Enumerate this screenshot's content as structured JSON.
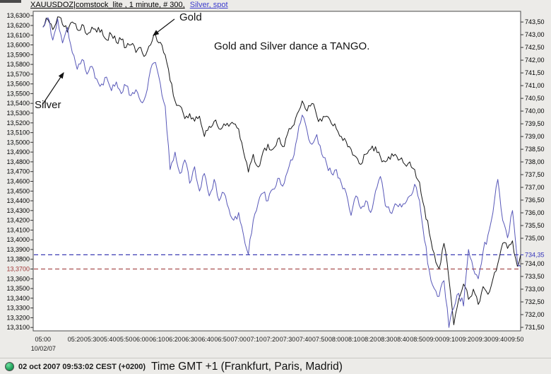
{
  "window": {
    "title_instrument": "XAUUSDOZ|comstock_lite , 1 minute, # 300,",
    "title_overlay": "Silver, spot",
    "overlay_color": "#3b3bcc"
  },
  "annotations": {
    "gold_label": "Gold",
    "silver_label": "Silver",
    "tango_text": "Gold and Silver dance a TANGO."
  },
  "status_bar": {
    "status_icon": "green-circle",
    "timestamp": "02 oct 2007 09:53:02 CEST (+0200)",
    "timezone_label": "Time GMT +1 (Frankfurt, Paris, Madrid)"
  },
  "chart_data": {
    "type": "line",
    "title": "XAUUSDOZ 1 minute — Gold and Silver, spot",
    "grid": false,
    "legend": "none",
    "x_axis": {
      "tick_labels": [
        "05:00",
        "05:20",
        "05:30",
        "05:40",
        "05:50",
        "06:00",
        "06:10",
        "06:20",
        "06:30",
        "06:40",
        "06:50",
        "07:00",
        "07:10",
        "07:20",
        "07:30",
        "07:40",
        "07:50",
        "08:00",
        "08:10",
        "08:20",
        "08:30",
        "08:40",
        "08:50",
        "09:00",
        "09:10",
        "09:20",
        "09:30",
        "09:40",
        "09:50"
      ],
      "date_label": "10/02/07",
      "window_start_min": -6,
      "window_end_min": 293
    },
    "left_axis": {
      "series": "Silver (USD/oz)",
      "tick_start": 13.31,
      "tick_end": 13.63,
      "tick_step": 0.01,
      "decimals": 4,
      "scale_min": 13.3065,
      "scale_max": 13.6345,
      "highlight_value": 13.37,
      "highlight_label": "13,3700",
      "highlight_color": "#a03838"
    },
    "right_axis": {
      "series": "Gold (USD/oz)",
      "tick_start": 731.5,
      "tick_end": 743.5,
      "tick_step": 0.5,
      "decimals": 2,
      "scale_min": 731.36,
      "scale_max": 743.92,
      "skip_value": 734.5,
      "current_value": 734.35,
      "current_label": "734,35",
      "current_color": "#3434bb"
    },
    "hlines": [
      {
        "axis": "right",
        "value": 734.35,
        "color": "#3c3cb4",
        "style": "dashed"
      },
      {
        "axis": "left",
        "value": 13.37,
        "color": "#a85050",
        "style": "dashed"
      }
    ],
    "series": [
      {
        "name": "Gold",
        "axis": "right",
        "color": "#141414",
        "noise_amp": 0.16,
        "x_start_min": 0,
        "x_step_min": 3,
        "x_end_min": 293,
        "values": [
          743.3,
          743.6,
          743.2,
          743.7,
          743.4,
          743.1,
          743.5,
          743.2,
          743.4,
          743.0,
          743.3,
          743.1,
          743.2,
          742.8,
          743.0,
          742.7,
          742.8,
          742.5,
          742.6,
          742.3,
          742.5,
          742.2,
          742.6,
          743.0,
          742.7,
          742.2,
          741.2,
          740.4,
          740.2,
          739.7,
          739.9,
          739.6,
          739.8,
          739.0,
          739.4,
          739.6,
          739.3,
          739.5,
          739.4,
          739.5,
          739.3,
          738.4,
          737.6,
          738.3,
          737.8,
          738.4,
          738.7,
          738.5,
          738.9,
          738.6,
          739.1,
          739.4,
          739.9,
          740.4,
          740.0,
          740.3,
          739.8,
          739.6,
          739.8,
          739.5,
          739.3,
          739.0,
          738.8,
          738.5,
          738.2,
          737.9,
          738.3,
          738.5,
          738.6,
          738.2,
          738.0,
          738.1,
          738.3,
          738.1,
          737.9,
          738.0,
          737.7,
          737.2,
          736.2,
          735.2,
          734.4,
          733.8,
          734.8,
          733.4,
          731.6,
          732.6,
          733.2,
          732.6,
          733.0,
          732.4,
          733.1,
          732.8,
          733.4,
          734.0,
          734.8,
          734.6,
          734.9,
          733.9,
          734.35
        ]
      },
      {
        "name": "Silver",
        "axis": "left",
        "color": "#5757b8",
        "noise_amp": 0.0042,
        "x_start_min": 0,
        "x_step_min": 3,
        "x_end_min": 293,
        "values": [
          13.618,
          13.628,
          13.605,
          13.627,
          13.602,
          13.618,
          13.592,
          13.575,
          13.585,
          13.57,
          13.578,
          13.565,
          13.56,
          13.567,
          13.553,
          13.562,
          13.55,
          13.558,
          13.548,
          13.554,
          13.542,
          13.548,
          13.575,
          13.582,
          13.56,
          13.537,
          13.472,
          13.49,
          13.468,
          13.482,
          13.458,
          13.475,
          13.45,
          13.468,
          13.445,
          13.462,
          13.44,
          13.448,
          13.432,
          13.42,
          13.428,
          13.405,
          13.385,
          13.42,
          13.438,
          13.448,
          13.44,
          13.452,
          13.463,
          13.455,
          13.47,
          13.482,
          13.505,
          13.528,
          13.512,
          13.498,
          13.508,
          13.488,
          13.478,
          13.468,
          13.472,
          13.458,
          13.448,
          13.425,
          13.445,
          13.432,
          13.44,
          13.428,
          13.45,
          13.465,
          13.435,
          13.428,
          13.437,
          13.437,
          13.437,
          13.445,
          13.457,
          13.44,
          13.4,
          13.368,
          13.35,
          13.342,
          13.358,
          13.31,
          13.33,
          13.345,
          13.332,
          13.39,
          13.37,
          13.36,
          13.388,
          13.405,
          13.428,
          13.462,
          13.42,
          13.402,
          13.43,
          13.378,
          13.372
        ]
      }
    ]
  }
}
